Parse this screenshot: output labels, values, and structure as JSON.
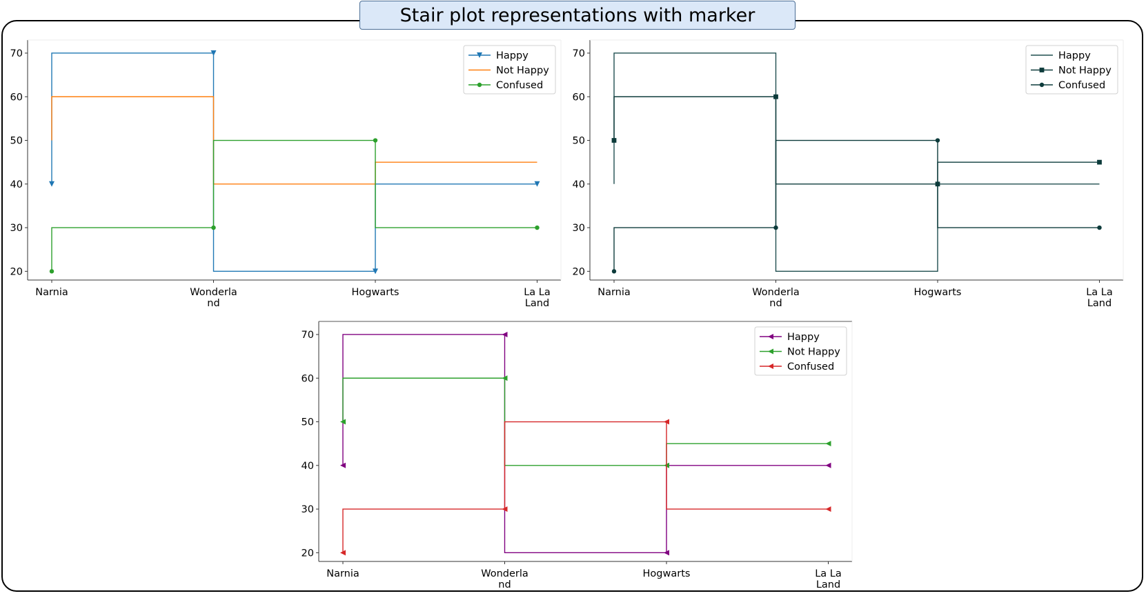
{
  "figure": {
    "title": "Stair plot representations with marker"
  },
  "chart_data": [
    {
      "type": "line",
      "drawstyle": "steps",
      "categories": [
        "Narnia",
        "Wonderland",
        "Hogwarts",
        "La La Land"
      ],
      "tick_labels": [
        [
          "Narnia"
        ],
        [
          "Wonderla",
          "nd"
        ],
        [
          "Hogwarts"
        ],
        [
          "La La",
          "Land"
        ]
      ],
      "ylim": [
        18,
        73
      ],
      "yticks": [
        20,
        30,
        40,
        50,
        60,
        70
      ],
      "legend_position": "top-right",
      "grid": false,
      "series": [
        {
          "name": "Happy",
          "values": [
            40,
            70,
            20,
            40
          ],
          "color": "#1f77b4",
          "marker": "triangle-down"
        },
        {
          "name": "Not Happy",
          "values": [
            50,
            60,
            40,
            45
          ],
          "color": "#ff7f0e",
          "marker": "none"
        },
        {
          "name": "Confused",
          "values": [
            20,
            30,
            50,
            30
          ],
          "color": "#2ca02c",
          "marker": "circle"
        }
      ]
    },
    {
      "type": "line",
      "drawstyle": "steps",
      "categories": [
        "Narnia",
        "Wonderland",
        "Hogwarts",
        "La La Land"
      ],
      "tick_labels": [
        [
          "Narnia"
        ],
        [
          "Wonderla",
          "nd"
        ],
        [
          "Hogwarts"
        ],
        [
          "La La",
          "Land"
        ]
      ],
      "ylim": [
        18,
        73
      ],
      "yticks": [
        20,
        30,
        40,
        50,
        60,
        70
      ],
      "legend_position": "top-right",
      "grid": false,
      "series": [
        {
          "name": "Happy",
          "values": [
            40,
            70,
            20,
            40
          ],
          "color": "#1f4e4f",
          "marker": "none"
        },
        {
          "name": "Not Happy",
          "values": [
            50,
            60,
            40,
            45
          ],
          "color": "#0d3b3b",
          "marker": "square"
        },
        {
          "name": "Confused",
          "values": [
            20,
            30,
            50,
            30
          ],
          "color": "#0d3b3b",
          "marker": "circle"
        }
      ]
    },
    {
      "type": "line",
      "drawstyle": "steps",
      "categories": [
        "Narnia",
        "Wonderland",
        "Hogwarts",
        "La La Land"
      ],
      "tick_labels": [
        [
          "Narnia"
        ],
        [
          "Wonderla",
          "nd"
        ],
        [
          "Hogwarts"
        ],
        [
          "La La",
          "Land"
        ]
      ],
      "ylim": [
        18,
        73
      ],
      "yticks": [
        20,
        30,
        40,
        50,
        60,
        70
      ],
      "legend_position": "top-right",
      "grid": false,
      "series": [
        {
          "name": "Happy",
          "values": [
            40,
            70,
            20,
            40
          ],
          "color": "#800080",
          "marker": "triangle-left"
        },
        {
          "name": "Not Happy",
          "values": [
            50,
            60,
            40,
            45
          ],
          "color": "#2ca02c",
          "marker": "triangle-left"
        },
        {
          "name": "Confused",
          "values": [
            20,
            30,
            50,
            30
          ],
          "color": "#d62728",
          "marker": "triangle-left"
        }
      ]
    }
  ]
}
